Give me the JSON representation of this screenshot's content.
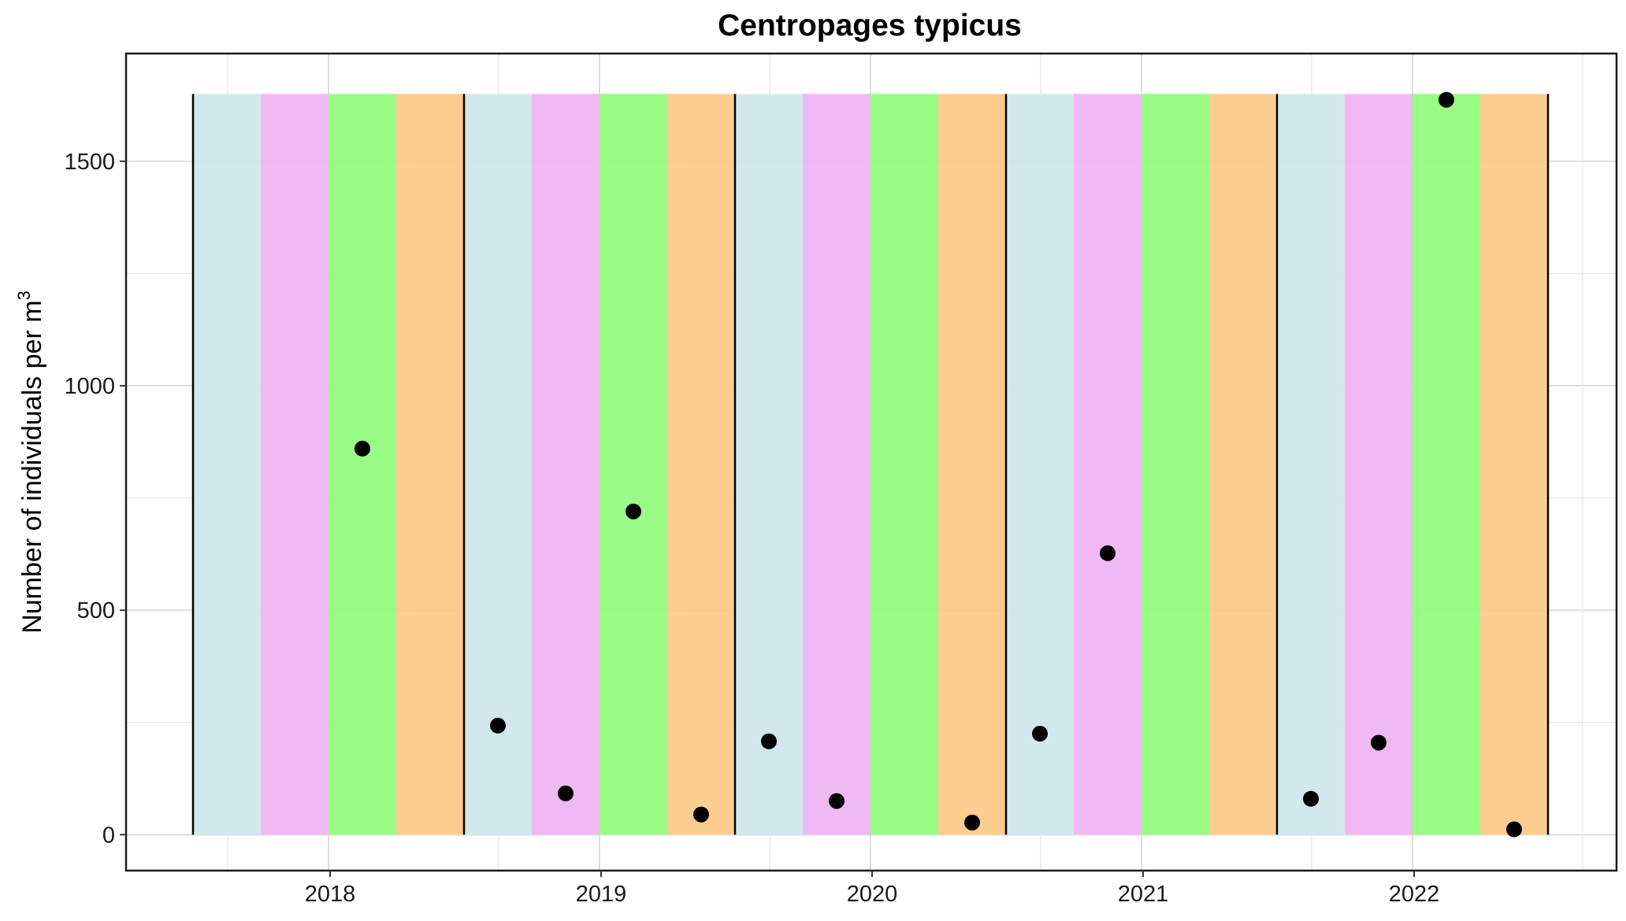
{
  "chart_data": {
    "type": "scatter",
    "title": "Centropages typicus",
    "xlabel": "",
    "ylabel": "Number of individuals per",
    "ylabel_unit": "m",
    "ylabel_unit_exponent": "3",
    "ylim": [
      -80,
      1740
    ],
    "y_ticks": [
      0,
      500,
      1000,
      1500
    ],
    "x_ticks": [
      "2018",
      "2019",
      "2020",
      "2021",
      "2022"
    ],
    "grid": true,
    "season_band_top": 1650,
    "season_colors": [
      "#cfe6ec",
      "#f0b3f3",
      "#90fc7c",
      "#fdc885"
    ],
    "year_boundary_color": "#000000",
    "point_color": "#000000",
    "years": [
      {
        "year": "2018",
        "values": [
          null,
          null,
          860,
          null
        ]
      },
      {
        "year": "2019",
        "values": [
          243,
          92,
          720,
          45
        ]
      },
      {
        "year": "2020",
        "values": [
          208,
          75,
          null,
          27
        ]
      },
      {
        "year": "2021",
        "values": [
          225,
          627,
          null,
          null
        ]
      },
      {
        "year": "2022",
        "values": [
          80,
          205,
          1637,
          12
        ]
      }
    ]
  }
}
